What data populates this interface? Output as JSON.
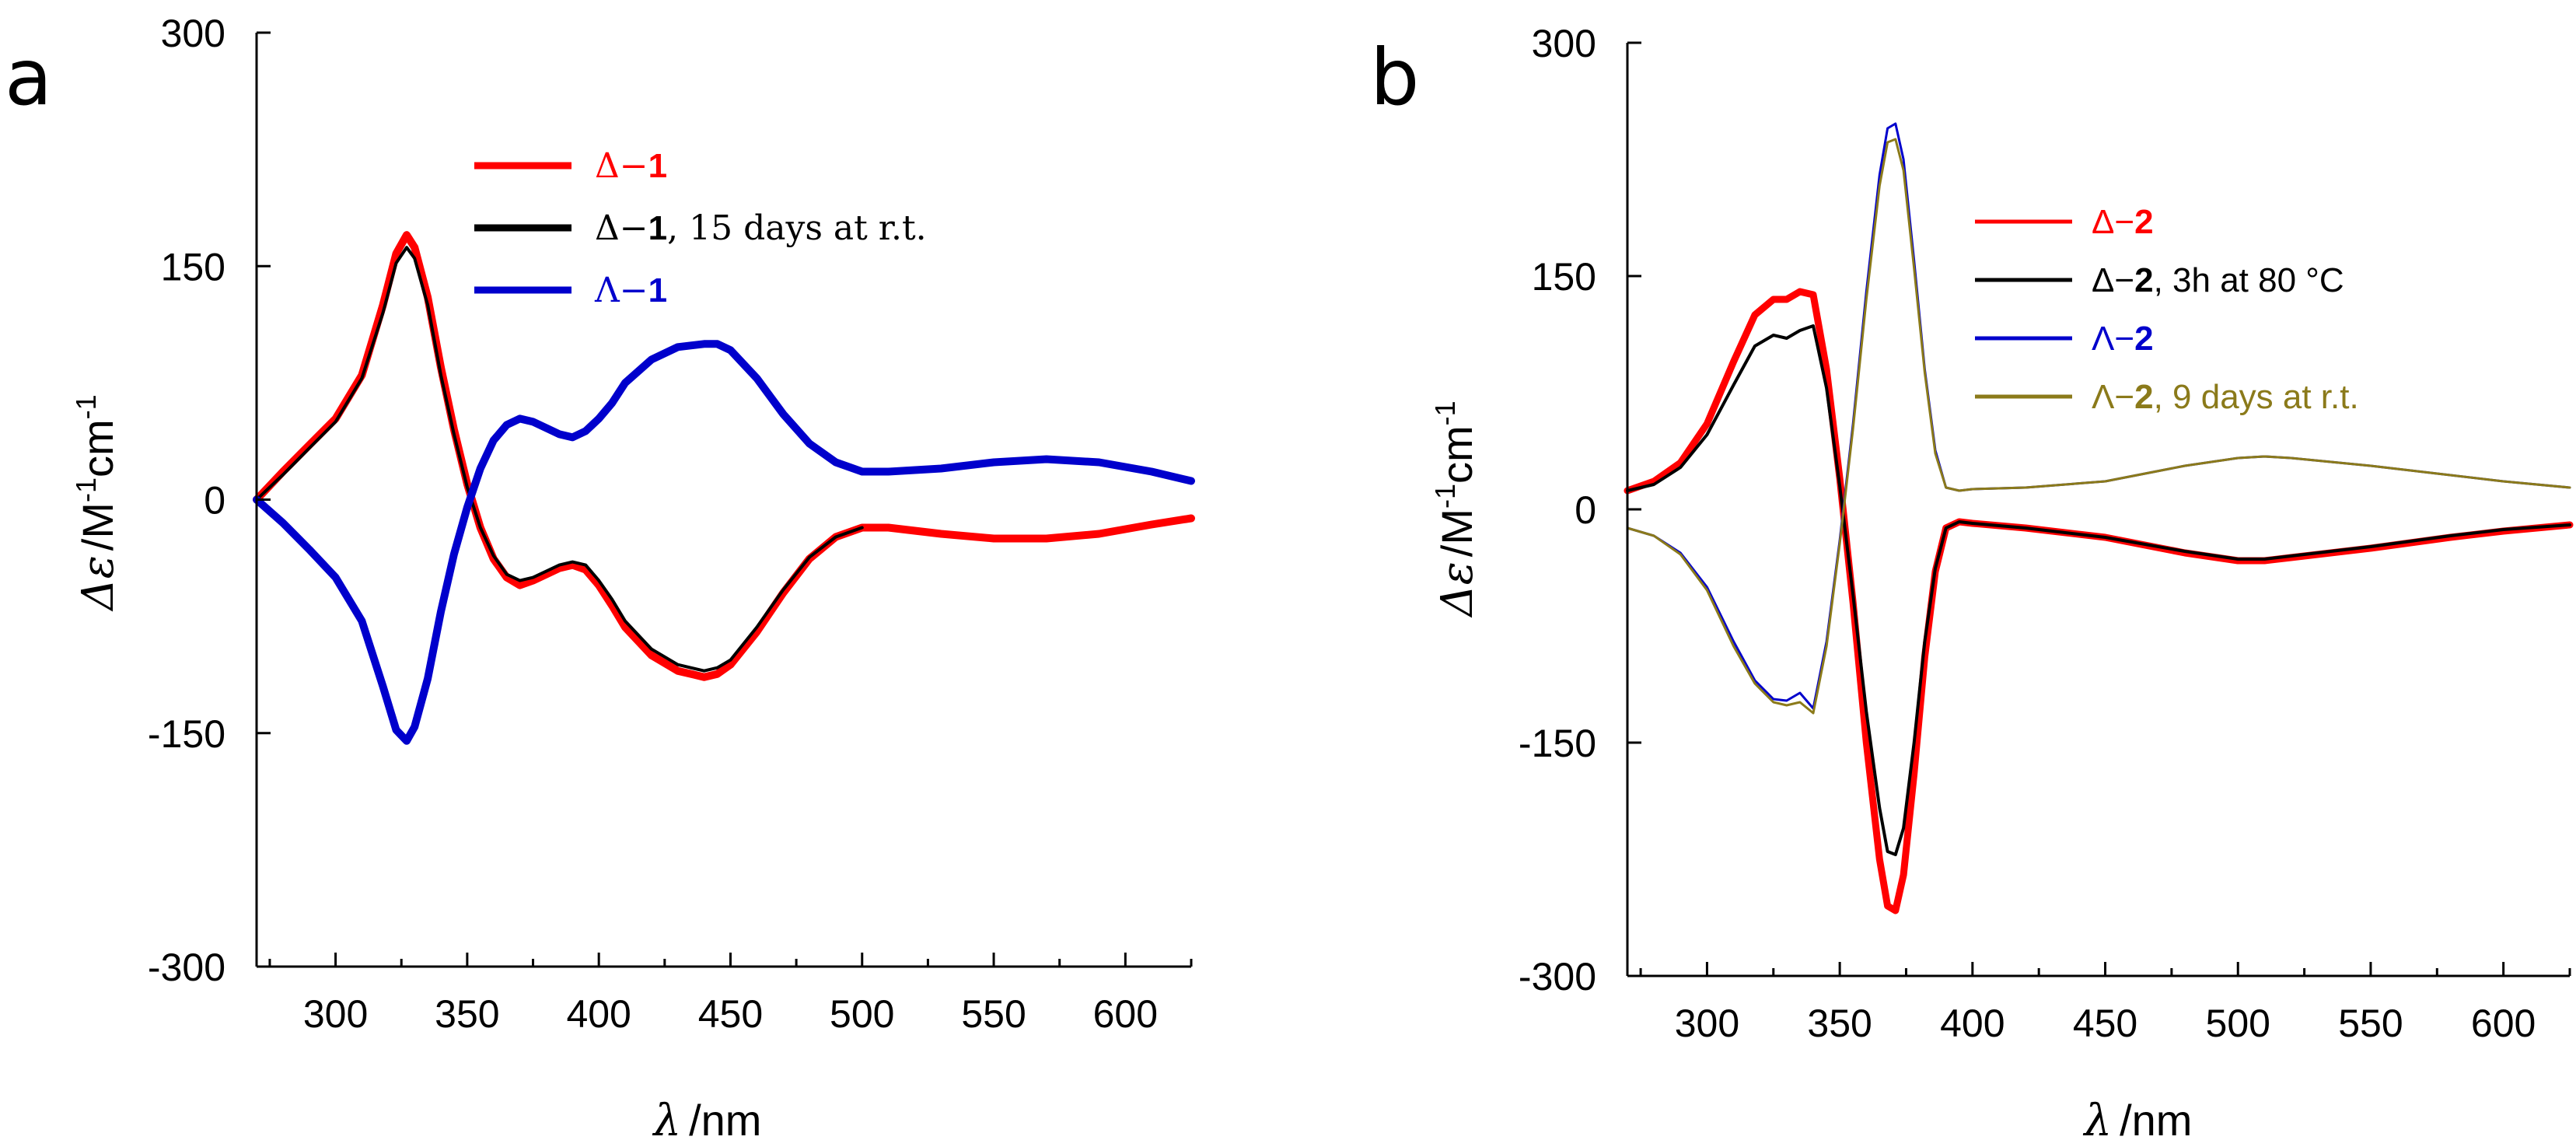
{
  "chart_data": [
    {
      "panel_label": "a",
      "type": "line",
      "xlabel_symbol": "λ",
      "xlabel_unit": "/nm",
      "ylabel_symbol": "Δε",
      "ylabel_unit_1": "/M",
      "ylabel_unit_exp1": "-1",
      "ylabel_unit_2": "cm",
      "ylabel_unit_exp2": "-1",
      "xlim": [
        270,
        625
      ],
      "ylim": [
        -300,
        300
      ],
      "xticks": [
        "300",
        "350",
        "400",
        "450",
        "500",
        "550",
        "600"
      ],
      "yticks": [
        "300",
        "150",
        "0",
        "-150",
        "-300"
      ],
      "legend": [
        {
          "prefix": "Δ−",
          "bold": "1",
          "suffix": "",
          "color": "#ff0000"
        },
        {
          "prefix": "Δ−",
          "bold": "1",
          "suffix": ", 15 days at r.t.",
          "color": "#000000"
        },
        {
          "prefix": "Λ−",
          "bold": "1",
          "suffix": "",
          "color": "#0000cc"
        }
      ],
      "series": [
        {
          "name": "Δ−1",
          "color": "#ff0000",
          "width": 10,
          "x": [
            270,
            280,
            290,
            300,
            310,
            318,
            323,
            327,
            330,
            335,
            340,
            345,
            350,
            355,
            360,
            365,
            370,
            375,
            380,
            385,
            390,
            395,
            400,
            405,
            410,
            420,
            430,
            440,
            445,
            450,
            460,
            470,
            480,
            490,
            500,
            510,
            530,
            550,
            570,
            590,
            610,
            625
          ],
          "y": [
            0,
            18,
            35,
            52,
            80,
            125,
            158,
            170,
            162,
            130,
            85,
            45,
            10,
            -18,
            -38,
            -50,
            -55,
            -52,
            -48,
            -44,
            -42,
            -45,
            -55,
            -68,
            -82,
            -100,
            -110,
            -114,
            -112,
            -106,
            -85,
            -60,
            -38,
            -24,
            -18,
            -18,
            -22,
            -25,
            -25,
            -22,
            -16,
            -12
          ]
        },
        {
          "name": "Δ−1, 15 days at r.t.",
          "color": "#000000",
          "width": 4,
          "x": [
            270,
            280,
            290,
            300,
            310,
            318,
            323,
            327,
            330,
            335,
            340,
            345,
            350,
            355,
            360,
            365,
            370,
            375,
            380,
            385,
            390,
            395,
            400,
            405,
            410,
            420,
            430,
            440,
            445,
            450,
            460,
            470,
            480,
            490,
            500
          ],
          "y": [
            0,
            16,
            33,
            50,
            78,
            120,
            152,
            162,
            155,
            125,
            80,
            42,
            8,
            -18,
            -36,
            -48,
            -52,
            -50,
            -46,
            -42,
            -40,
            -42,
            -52,
            -64,
            -78,
            -96,
            -106,
            -110,
            -108,
            -103,
            -82,
            -58,
            -37,
            -24,
            -18
          ]
        },
        {
          "name": "Λ−1",
          "color": "#0000cc",
          "width": 10,
          "x": [
            270,
            280,
            290,
            300,
            310,
            318,
            323,
            327,
            330,
            335,
            340,
            345,
            350,
            355,
            360,
            365,
            370,
            375,
            380,
            385,
            390,
            395,
            400,
            405,
            410,
            420,
            430,
            440,
            445,
            450,
            460,
            470,
            480,
            490,
            500,
            510,
            530,
            550,
            570,
            590,
            610,
            625
          ],
          "y": [
            0,
            -15,
            -32,
            -50,
            -78,
            -120,
            -148,
            -155,
            -146,
            -115,
            -72,
            -35,
            -5,
            20,
            38,
            48,
            52,
            50,
            46,
            42,
            40,
            44,
            52,
            62,
            75,
            90,
            98,
            100,
            100,
            96,
            78,
            55,
            36,
            24,
            18,
            18,
            20,
            24,
            26,
            24,
            18,
            12
          ]
        }
      ]
    },
    {
      "panel_label": "b",
      "type": "line",
      "xlabel_symbol": "λ",
      "xlabel_unit": "/nm",
      "ylabel_symbol": "Δε",
      "ylabel_unit_1": "/M",
      "ylabel_unit_exp1": "-1",
      "ylabel_unit_2": "cm",
      "ylabel_unit_exp2": "-1",
      "xlim": [
        270,
        625
      ],
      "ylim": [
        -300,
        300
      ],
      "xticks": [
        "300",
        "350",
        "400",
        "450",
        "500",
        "550",
        "600"
      ],
      "yticks": [
        "300",
        "150",
        "0",
        "-150",
        "-300"
      ],
      "legend": [
        {
          "prefix": "Δ−",
          "bold": "2",
          "suffix": "",
          "color": "#ff0000",
          "text_color": "#ff0000"
        },
        {
          "prefix": "Δ−",
          "bold": "2",
          "suffix": ", 3h at 80 °C",
          "color": "#000000",
          "text_color": "#000000"
        },
        {
          "prefix": "Λ−",
          "bold": "2",
          "suffix": "",
          "color": "#0000cc",
          "text_color": "#0000cc"
        },
        {
          "prefix": "Λ−",
          "bold": "2",
          "suffix": ", 9 days at r.t.",
          "color": "#8b7a1a",
          "text_color": "#8b7a1a"
        }
      ],
      "series": [
        {
          "name": "Δ−2",
          "color": "#ff0000",
          "width": 9,
          "x": [
            270,
            280,
            290,
            300,
            310,
            318,
            325,
            330,
            335,
            340,
            345,
            350,
            355,
            360,
            365,
            368,
            371,
            374,
            378,
            382,
            386,
            390,
            395,
            400,
            420,
            450,
            480,
            500,
            510,
            520,
            550,
            580,
            600,
            625
          ],
          "y": [
            12,
            18,
            30,
            55,
            95,
            125,
            135,
            135,
            140,
            138,
            90,
            20,
            -60,
            -150,
            -225,
            -255,
            -258,
            -235,
            -170,
            -95,
            -40,
            -12,
            -8,
            -9,
            -12,
            -18,
            -28,
            -33,
            -33,
            -31,
            -25,
            -18,
            -14,
            -10
          ]
        },
        {
          "name": "Δ−2, 3h at 80 °C",
          "color": "#000000",
          "width": 4,
          "x": [
            270,
            280,
            290,
            300,
            310,
            318,
            325,
            330,
            335,
            340,
            345,
            350,
            355,
            360,
            365,
            368,
            371,
            374,
            378,
            382,
            386,
            390,
            395,
            400,
            420,
            450,
            480,
            500,
            510,
            520,
            550,
            580,
            600,
            625
          ],
          "y": [
            12,
            16,
            27,
            48,
            80,
            105,
            112,
            110,
            115,
            118,
            78,
            15,
            -55,
            -130,
            -192,
            -220,
            -222,
            -205,
            -150,
            -85,
            -38,
            -12,
            -8,
            -9,
            -12,
            -18,
            -27,
            -32,
            -32,
            -30,
            -24,
            -17,
            -13,
            -10
          ]
        },
        {
          "name": "Λ−2",
          "color": "#0000cc",
          "width": 3,
          "x": [
            270,
            280,
            290,
            300,
            310,
            318,
            325,
            330,
            335,
            340,
            345,
            350,
            355,
            360,
            365,
            368,
            371,
            374,
            378,
            382,
            386,
            390,
            395,
            400,
            420,
            450,
            480,
            500,
            510,
            520,
            550,
            580,
            600,
            625
          ],
          "y": [
            -12,
            -17,
            -28,
            -50,
            -85,
            -110,
            -122,
            -123,
            -118,
            -128,
            -85,
            -20,
            55,
            140,
            215,
            245,
            248,
            225,
            160,
            90,
            38,
            14,
            12,
            13,
            14,
            18,
            28,
            33,
            34,
            33,
            28,
            22,
            18,
            14
          ]
        },
        {
          "name": "Λ−2, 9 days at r.t.",
          "color": "#8b7a1a",
          "width": 3,
          "x": [
            270,
            280,
            290,
            300,
            310,
            318,
            325,
            330,
            335,
            340,
            345,
            350,
            355,
            360,
            365,
            368,
            371,
            374,
            378,
            382,
            386,
            390,
            395,
            400,
            420,
            450,
            480,
            500,
            510,
            520,
            550,
            580,
            600,
            625
          ],
          "y": [
            -12,
            -17,
            -29,
            -52,
            -88,
            -112,
            -124,
            -126,
            -124,
            -131,
            -88,
            -22,
            52,
            135,
            208,
            236,
            238,
            218,
            155,
            88,
            36,
            14,
            12,
            13,
            14,
            18,
            28,
            33,
            34,
            33,
            28,
            22,
            18,
            14
          ]
        }
      ]
    }
  ]
}
